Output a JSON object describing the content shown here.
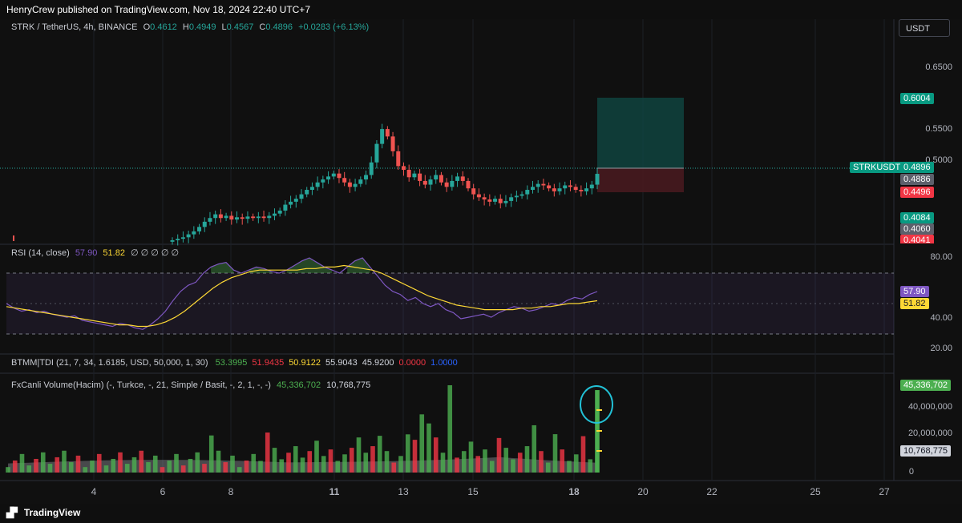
{
  "header": {
    "published": "HenryCrew published on TradingView.com, Nov 18, 2024 22:40 UTC+7"
  },
  "symbol": {
    "title": "STRK / TetherUS, 4h, BINANCE",
    "o_label": "O",
    "o_value": "0.4612",
    "h_label": "H",
    "h_value": "0.4949",
    "l_label": "L",
    "l_value": "0.4567",
    "c_label": "C",
    "c_value": "0.4896",
    "change": "+0.0283 (+6.13%)"
  },
  "currency_button": "USDT",
  "price_axis": {
    "labels": [
      "0.6500",
      "0.5500",
      "0.5000"
    ]
  },
  "price_tags": {
    "target": "0.6004",
    "symbol_name": "STRKUSDT",
    "last": "0.4896",
    "entry": "0.4886",
    "stop": "0.4496",
    "t1": "0.4084",
    "t2": "0.4060",
    "t3": "0.4041"
  },
  "rsi": {
    "title": "RSI (14, close)",
    "v1": "57.90",
    "v2": "51.82",
    "extras": "∅ ∅ ∅ ∅ ∅",
    "axis": [
      "80.00",
      "40.00",
      "20.00"
    ],
    "tag_rsi": "57.90",
    "tag_ma": "51.82"
  },
  "tdi": {
    "title": "BTMM|TDI (21, 7, 34, 1.6185, USD, 50,000, 1, 30)",
    "values": [
      {
        "v": "53.3995",
        "color": "#4caf50"
      },
      {
        "v": "51.9435",
        "color": "#f23645"
      },
      {
        "v": "50.9122",
        "color": "#fdd835"
      },
      {
        "v": "55.9043",
        "color": "#d1d4dc"
      },
      {
        "v": "45.9200",
        "color": "#d1d4dc"
      },
      {
        "v": "0.0000",
        "color": "#f23645"
      },
      {
        "v": "1.0000",
        "color": "#2962ff"
      }
    ]
  },
  "volume": {
    "title": "FxCanli Volume(Hacim) (-, Turkce, -, 21, Simple / Basit, -, 2, 1, -, -)",
    "v1": "45,336,702",
    "v2": "10,768,775",
    "axis": [
      "40,000,000",
      "20,000,000",
      "0"
    ],
    "tag_vol": "45,336,702",
    "tag_ma": "10,768,775"
  },
  "time_axis": [
    "4",
    "6",
    "8",
    "11",
    "13",
    "15",
    "18",
    "20",
    "22",
    "25",
    "27"
  ],
  "footer": {
    "brand": "TradingView"
  },
  "colors": {
    "up": "#26a69a",
    "down": "#ef5350",
    "rsi": "#7e57c2",
    "ma": "#fdd835",
    "vol_up": "#4caf50",
    "vol_down": "#f23645"
  },
  "chart_data": [
    {
      "type": "candlestick",
      "x_ticks": [
        "4",
        "6",
        "8",
        "11",
        "13",
        "15",
        "18",
        "20",
        "22",
        "25",
        "27"
      ],
      "ylim": [
        0.4,
        0.67
      ],
      "ohlc_last": {
        "open": 0.4612,
        "high": 0.4949,
        "low": 0.4567,
        "close": 0.4896
      },
      "close_series": [
        0.4,
        0.402,
        0.404,
        0.408,
        0.412,
        0.418,
        0.425,
        0.43,
        0.435,
        0.43,
        0.433,
        0.428,
        0.431,
        0.429,
        0.432,
        0.43,
        0.432,
        0.43,
        0.433,
        0.436,
        0.44,
        0.448,
        0.452,
        0.456,
        0.462,
        0.468,
        0.472,
        0.478,
        0.482,
        0.486,
        0.49,
        0.484,
        0.478,
        0.472,
        0.476,
        0.482,
        0.488,
        0.505,
        0.53,
        0.55,
        0.54,
        0.52,
        0.5,
        0.495,
        0.485,
        0.49,
        0.48,
        0.475,
        0.482,
        0.488,
        0.478,
        0.472,
        0.48,
        0.486,
        0.48,
        0.47,
        0.462,
        0.458,
        0.455,
        0.452,
        0.456,
        0.45,
        0.453,
        0.458,
        0.46,
        0.462,
        0.468,
        0.472,
        0.476,
        0.474,
        0.47,
        0.466,
        0.47,
        0.474,
        0.472,
        0.468,
        0.466,
        0.47,
        0.475,
        0.4896
      ],
      "position": {
        "target": 0.6004,
        "entry": 0.4886,
        "stop": 0.4496
      }
    },
    {
      "type": "line",
      "name": "RSI (14, close)",
      "ylim": [
        15,
        90
      ],
      "levels": [
        70,
        50,
        30
      ],
      "series": [
        {
          "name": "RSI",
          "last": 57.9,
          "values": [
            50,
            47,
            45,
            46,
            44,
            45,
            43,
            42,
            41,
            42,
            39,
            38,
            37,
            36,
            35,
            37,
            36,
            34,
            33,
            36,
            40,
            45,
            52,
            58,
            62,
            64,
            70,
            74,
            76,
            77,
            72,
            70,
            72,
            74,
            73,
            71,
            70,
            72,
            75,
            78,
            80,
            77,
            74,
            72,
            70,
            74,
            78,
            80,
            74,
            68,
            62,
            58,
            56,
            52,
            54,
            50,
            48,
            50,
            46,
            44,
            40,
            41,
            42,
            43,
            41,
            44,
            46,
            48,
            47,
            45,
            46,
            48,
            50,
            49,
            52,
            54,
            53,
            56,
            57.9
          ]
        },
        {
          "name": "MA",
          "last": 51.82,
          "values": [
            48,
            47,
            46,
            45,
            44,
            43,
            42,
            41,
            40,
            39,
            38,
            37,
            36,
            36,
            35,
            35,
            36,
            38,
            41,
            45,
            50,
            55,
            60,
            64,
            67,
            69,
            71,
            72,
            72,
            72,
            72,
            72,
            73,
            73,
            74,
            74,
            75,
            74,
            73,
            72,
            70,
            67,
            64,
            61,
            58,
            55,
            53,
            51,
            49,
            48,
            47,
            46,
            46,
            46,
            46,
            47,
            47,
            48,
            48,
            49,
            50,
            50,
            51,
            51.82
          ]
        }
      ]
    },
    {
      "type": "bar",
      "name": "FxCanli Volume(Hacim)",
      "ylim": [
        0,
        48000000
      ],
      "last_value": 45336702,
      "ma_last": 10768775
    }
  ]
}
